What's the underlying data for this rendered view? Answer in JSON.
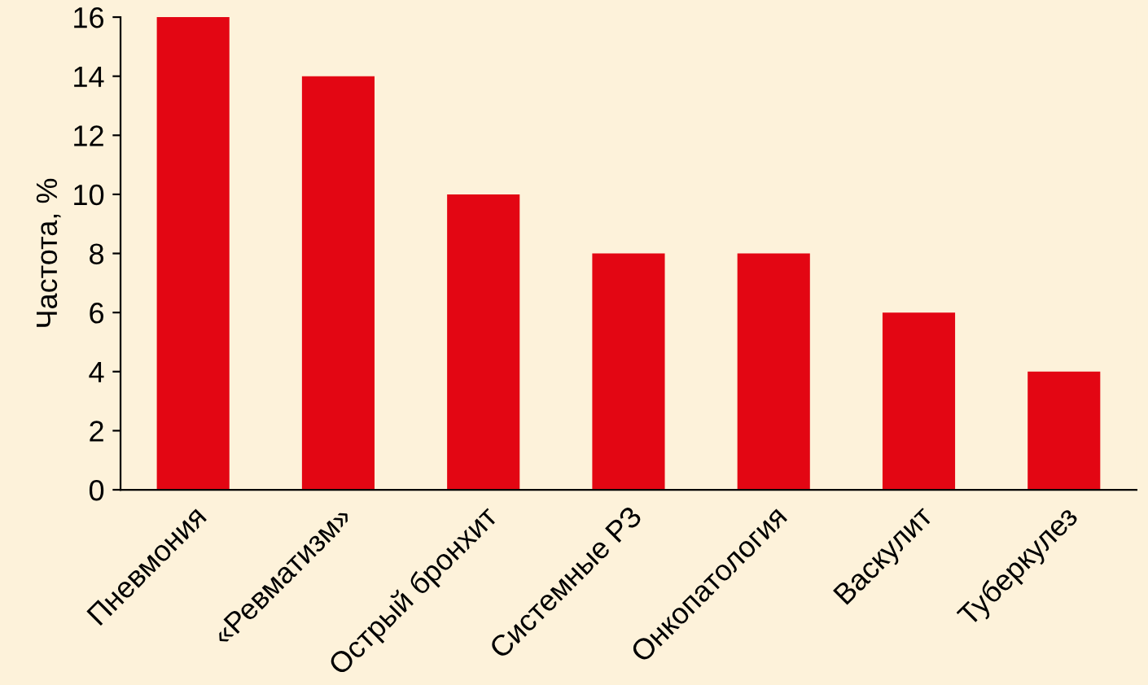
{
  "chart_data": {
    "type": "bar",
    "ylabel": "Частота, %",
    "categories": [
      "Пневмония",
      "«Ревматизм»",
      "Острый бронхит",
      "Системные РЗ",
      "Онкопатология",
      "Васкулит",
      "Туберкулез"
    ],
    "values": [
      16,
      14,
      10,
      8,
      8,
      6,
      4
    ],
    "color": "#e30613",
    "ylim": [
      0,
      16
    ],
    "yticks": [
      0,
      2,
      4,
      6,
      8,
      10,
      12,
      14,
      16
    ],
    "grid": false,
    "legend": false
  }
}
